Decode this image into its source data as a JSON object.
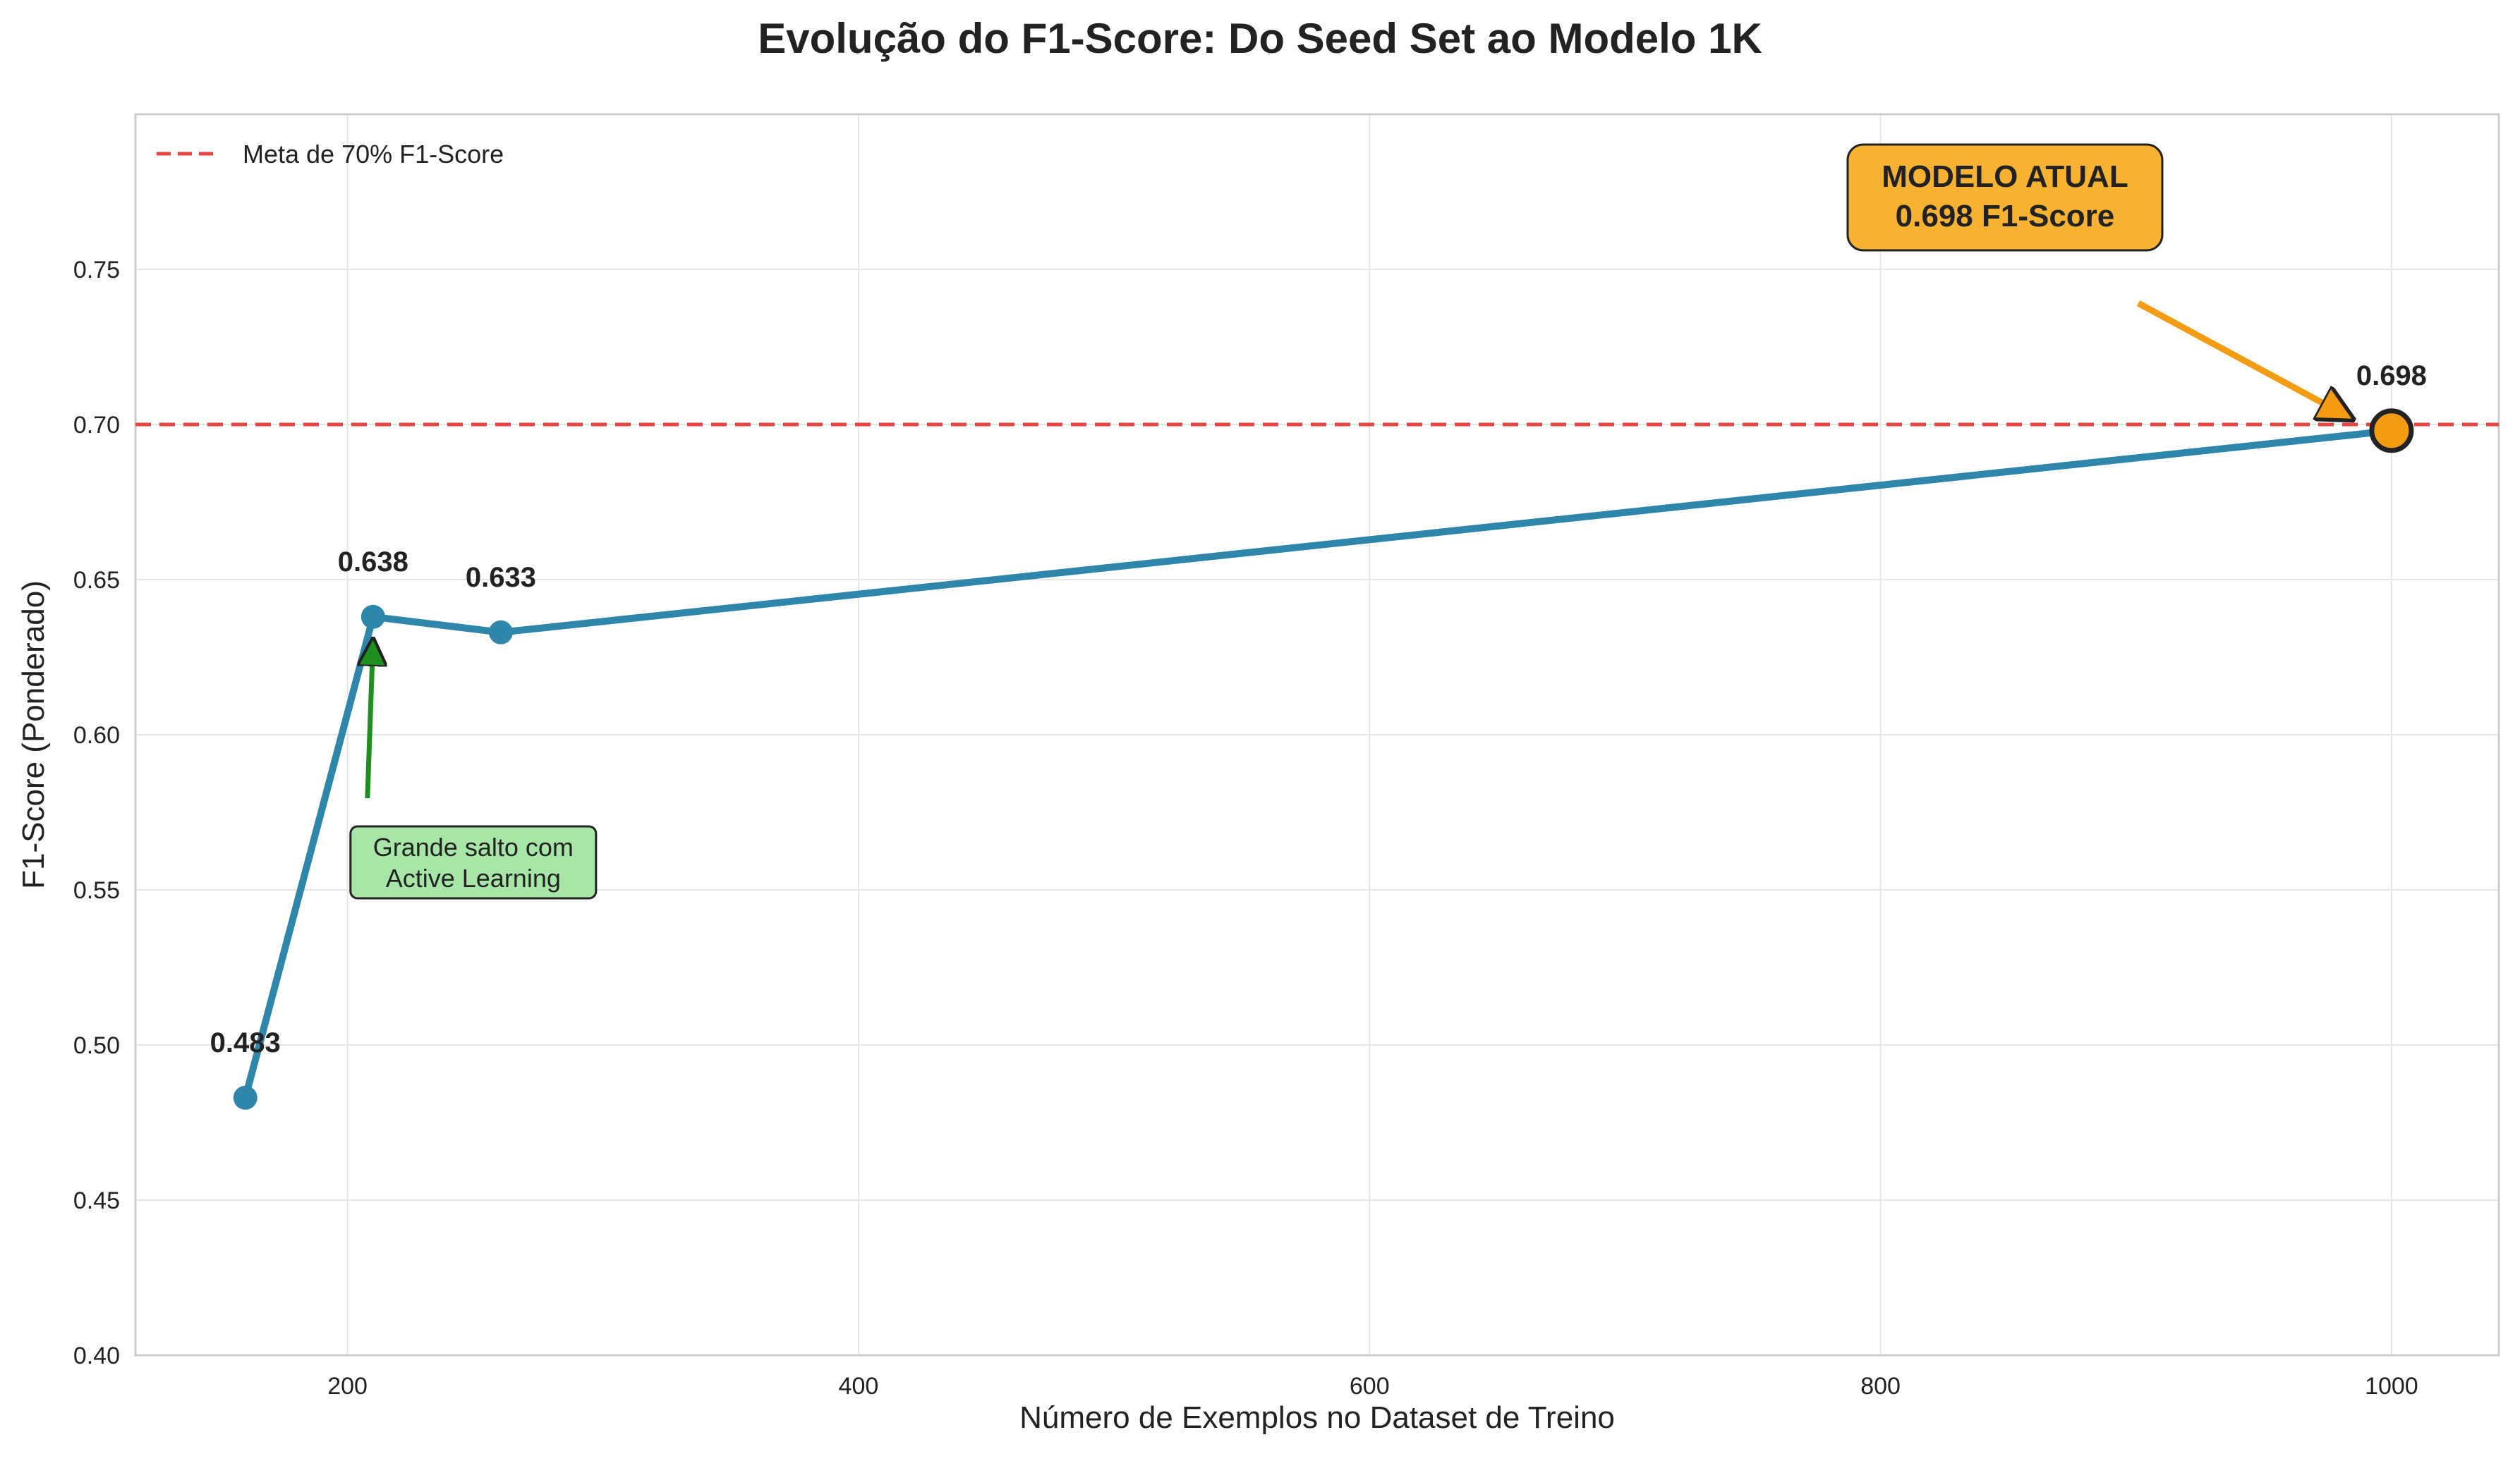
{
  "chart_data": {
    "type": "line",
    "title": "Evolução do F1-Score: Do Seed Set ao Modelo 1K",
    "xlabel": "Número de Exemplos no Dataset de Treino",
    "ylabel": "F1-Score (Ponderado)",
    "xlim": [
      117,
      1042
    ],
    "ylim": [
      0.4,
      0.8
    ],
    "xticks": [
      200,
      400,
      600,
      800,
      1000
    ],
    "yticks": [
      0.4,
      0.45,
      0.5,
      0.55,
      0.6,
      0.65,
      0.7,
      0.75
    ],
    "xtick_labels": [
      "200",
      "400",
      "600",
      "800",
      "1000"
    ],
    "ytick_labels": [
      "0.40",
      "0.45",
      "0.50",
      "0.55",
      "0.60",
      "0.65",
      "0.70",
      "0.75"
    ],
    "grid": true,
    "legend_position": "top-left",
    "series": [
      {
        "x": [
          160,
          210,
          260,
          1000
        ],
        "y": [
          0.483,
          0.638,
          0.633,
          0.698
        ],
        "labels": [
          "0.483",
          "0.638",
          "0.633",
          "0.698"
        ],
        "color": "#2e86ab"
      }
    ],
    "reference_line": {
      "y": 0.7,
      "label": "Meta de 70% F1-Score",
      "color": "#e84545",
      "style": "dashed"
    },
    "highlight_point": {
      "x": 1000,
      "y": 0.698,
      "color": "#f39c12"
    },
    "annotations": [
      {
        "lines": [
          "Grande salto com",
          "Active Learning"
        ],
        "target": [
          210,
          0.632
        ],
        "text_at": [
          210,
          0.575
        ],
        "box_color": "#a8e6a8",
        "arrow_color": "#1f8f1f"
      },
      {
        "lines": [
          "MODELO ATUAL",
          "0.698 F1-Score"
        ],
        "target": [
          990,
          0.7
        ],
        "text_at": [
          865,
          0.755
        ],
        "box_color": "#f7b232",
        "arrow_color": "#f39c12"
      }
    ]
  }
}
